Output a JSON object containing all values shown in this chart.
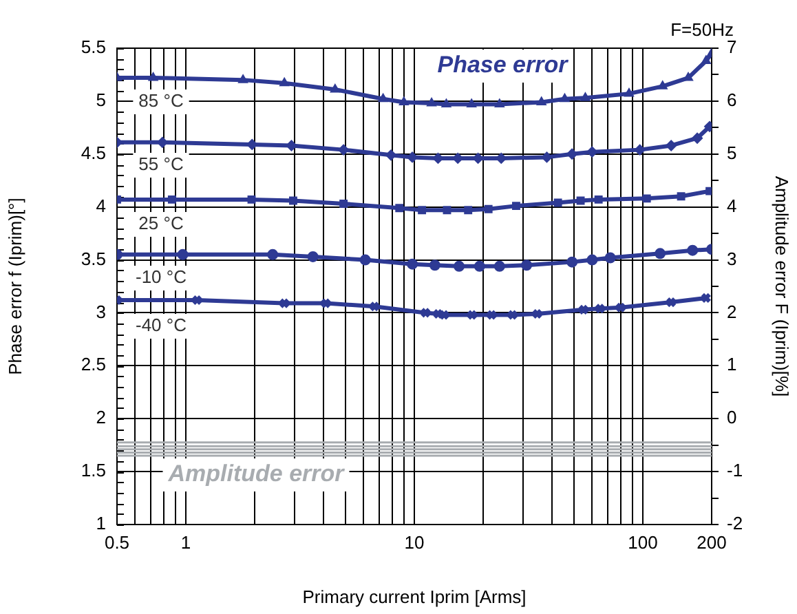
{
  "chart_data": {
    "type": "line",
    "xlabel": "Primary current Iprim [Arms]",
    "ylabel": "Phase error f (Iprim)[°]",
    "y2label": "Amplitude error F (Iprim)[%]",
    "log": "x",
    "grid": true,
    "legend": false,
    "line_style": "solid",
    "xlim": [
      0.5,
      200
    ],
    "xticks": [
      0.5,
      {
        "value": 0.6,
        "label": null
      },
      {
        "value": 0.7,
        "label": null
      },
      {
        "value": 0.8,
        "label": null
      },
      {
        "value": 0.9,
        "label": null
      },
      1,
      {
        "value": 2,
        "label": null
      },
      {
        "value": 3,
        "label": null
      },
      {
        "value": 4,
        "label": null
      },
      {
        "value": 5,
        "label": null
      },
      {
        "value": 6,
        "label": null
      },
      {
        "value": 7,
        "label": null
      },
      {
        "value": 8,
        "label": null
      },
      {
        "value": 9,
        "label": null
      },
      10,
      {
        "value": 20,
        "label": null
      },
      {
        "value": 30,
        "label": null
      },
      {
        "value": 40,
        "label": null
      },
      {
        "value": 50,
        "label": null
      },
      {
        "value": 60,
        "label": null
      },
      {
        "value": 70,
        "label": null
      },
      {
        "value": 80,
        "label": null
      },
      {
        "value": 90,
        "label": null
      },
      100,
      200
    ],
    "ylim": [
      1,
      5.5
    ],
    "yticks": [
      1,
      1.5,
      2,
      2.5,
      3,
      3.5,
      4,
      4.5,
      5,
      5.5
    ],
    "y2lim": [
      -2,
      7
    ],
    "y2ticks": [
      -2,
      {
        "value": -1.5,
        "label": null
      },
      -1,
      {
        "value": -0.5,
        "label": null
      },
      0,
      {
        "value": 0.5,
        "label": null
      },
      1,
      {
        "value": 1.5,
        "label": null
      },
      2,
      {
        "value": 2.5,
        "label": null
      },
      3,
      {
        "value": 3.5,
        "label": null
      },
      4,
      {
        "value": 4.5,
        "label": null
      },
      5,
      {
        "value": 5.5,
        "label": null
      },
      6,
      {
        "value": 6.5,
        "label": null
      },
      7
    ],
    "series": [
      {
        "color": "#2e3a94",
        "marker": "triangle",
        "x": [
          0.5,
          0.72,
          1.78,
          2.7,
          4.5,
          7.3,
          9,
          11.9,
          13.8,
          17.8,
          23.6,
          36,
          45.5,
          56,
          87,
          122,
          158,
          189,
          200
        ],
        "values": [
          5.22,
          5.22,
          5.2,
          5.17,
          5.11,
          5.02,
          4.99,
          4.98,
          4.97,
          4.97,
          4.97,
          4.99,
          5.02,
          5.03,
          5.07,
          5.14,
          5.22,
          5.38,
          5.45
        ]
      },
      {
        "color": "#2e3a94",
        "marker": "diamond",
        "x": [
          0.5,
          0.79,
          1.95,
          2.9,
          4.9,
          7.9,
          9.8,
          12.7,
          15.5,
          19,
          24,
          38,
          49,
          60,
          97,
          133,
          173,
          196
        ],
        "values": [
          4.61,
          4.61,
          4.59,
          4.58,
          4.54,
          4.49,
          4.47,
          4.46,
          4.46,
          4.46,
          4.46,
          4.47,
          4.5,
          4.52,
          4.54,
          4.58,
          4.65,
          4.76
        ]
      },
      {
        "color": "#2e3a94",
        "marker": "square",
        "x": [
          0.5,
          0.87,
          1.94,
          2.95,
          4.9,
          8.6,
          10.8,
          13.9,
          17.2,
          21.1,
          27.9,
          42.5,
          53.4,
          64,
          104,
          147,
          196
        ],
        "values": [
          4.07,
          4.07,
          4.07,
          4.06,
          4.03,
          3.99,
          3.97,
          3.97,
          3.97,
          3.98,
          4.01,
          4.04,
          4.06,
          4.07,
          4.08,
          4.1,
          4.15
        ]
      },
      {
        "color": "#2e3a94",
        "marker": "circle",
        "x": [
          0.5,
          0.97,
          2.4,
          3.6,
          6.1,
          9.8,
          12.3,
          15.7,
          19.3,
          23.6,
          31,
          49,
          60,
          72,
          119,
          165,
          200
        ],
        "values": [
          3.55,
          3.55,
          3.55,
          3.53,
          3.5,
          3.46,
          3.45,
          3.44,
          3.44,
          3.44,
          3.45,
          3.48,
          3.5,
          3.52,
          3.56,
          3.59,
          3.6
        ]
      },
      {
        "color": "#2e3a94",
        "marker": "cross",
        "x": [
          0.5,
          1.12,
          2.7,
          4.1,
          6.7,
          11.2,
          12.7,
          13.5,
          17.9,
          21.8,
          26.9,
          34.5,
          55,
          65,
          80,
          133,
          189
        ],
        "values": [
          3.12,
          3.12,
          3.09,
          3.09,
          3.06,
          3.0,
          2.99,
          2.98,
          2.98,
          2.98,
          2.98,
          2.99,
          3.03,
          3.04,
          3.05,
          3.1,
          3.14
        ]
      },
      {
        "color": "#a8acb0",
        "marker": "none",
        "axis": "y2",
        "x": [
          0.5,
          200
        ],
        "values": [
          -0.45,
          -0.45
        ]
      },
      {
        "color": "#a8acb0",
        "marker": "none",
        "axis": "y2",
        "x": [
          0.5,
          200
        ],
        "values": [
          -0.52,
          -0.52
        ]
      },
      {
        "color": "#a8acb0",
        "marker": "none",
        "axis": "y2",
        "x": [
          0.5,
          200
        ],
        "values": [
          -0.58,
          -0.58
        ]
      },
      {
        "color": "#a8acb0",
        "marker": "none",
        "axis": "y2",
        "x": [
          0.5,
          200
        ],
        "values": [
          -0.64,
          -0.64
        ]
      },
      {
        "color": "#a8acb0",
        "marker": "none",
        "axis": "y2",
        "x": [
          0.5,
          200
        ],
        "values": [
          -0.7,
          -0.7
        ]
      }
    ],
    "annotations": [
      "F=50Hz",
      "85 °C",
      "55 °C",
      "25 °C",
      "-10 °C",
      "-40 °C",
      "Phase error",
      "Amplitude error"
    ]
  }
}
